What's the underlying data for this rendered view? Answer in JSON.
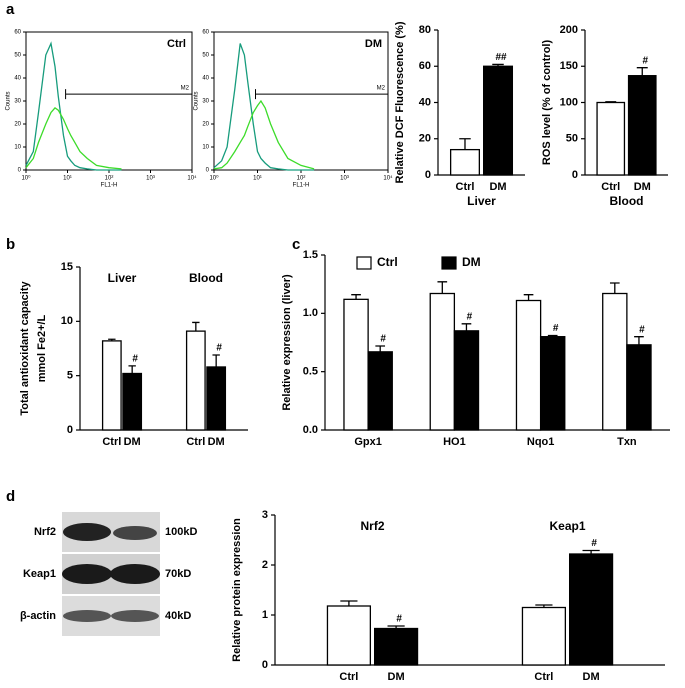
{
  "panels": [
    "a",
    "b",
    "c",
    "d"
  ],
  "blot": {
    "rows": [
      {
        "label": "Nrf2",
        "size": "100kD"
      },
      {
        "label": "Keap1",
        "size": "70kD"
      },
      {
        "label": "β-actin",
        "size": "40kD"
      }
    ]
  },
  "chart_data": [
    {
      "type": "line",
      "title": "Ctrl",
      "xlabel": "FL1-H",
      "ylabel": "Counts",
      "xscale": "log",
      "xlim": [
        1,
        10000
      ],
      "xticks": [
        {
          "value": 1,
          "label": "10⁰"
        },
        {
          "value": 10,
          "label": "10¹"
        },
        {
          "value": 100,
          "label": "10²"
        },
        {
          "value": 1000,
          "label": "10³"
        },
        {
          "value": 10000,
          "label": "10⁴"
        }
      ],
      "ylim": [
        0,
        60
      ],
      "yticks": [
        0,
        10,
        20,
        30,
        40,
        50,
        60
      ],
      "x": [
        1,
        1.5,
        2,
        3,
        4,
        5,
        6,
        8,
        10,
        12,
        15,
        20,
        30,
        50,
        100,
        200
      ],
      "series": [
        {
          "color": "#179c7d",
          "values": [
            2,
            8,
            25,
            50,
            55,
            45,
            32,
            15,
            6,
            4,
            2,
            1,
            0.5,
            0,
            0,
            0
          ]
        },
        {
          "color": "#3ddc2a",
          "values": [
            1,
            5,
            12,
            20,
            25,
            27,
            26,
            22,
            18,
            15,
            12,
            8,
            5,
            2,
            1,
            0.5
          ]
        }
      ],
      "gate": {
        "label": "M2",
        "x": [
          9,
          10000
        ],
        "y": 33
      }
    },
    {
      "type": "line",
      "title": "DM",
      "xlabel": "FL1-H",
      "ylabel": "Counts",
      "xscale": "log",
      "xlim": [
        1,
        10000
      ],
      "xticks": [
        {
          "value": 1,
          "label": "10⁰"
        },
        {
          "value": 10,
          "label": "10¹"
        },
        {
          "value": 100,
          "label": "10²"
        },
        {
          "value": 1000,
          "label": "10³"
        },
        {
          "value": 10000,
          "label": "10⁴"
        }
      ],
      "ylim": [
        0,
        60
      ],
      "yticks": [
        0,
        10,
        20,
        30,
        40,
        50,
        60
      ],
      "x": [
        1,
        1.5,
        2,
        3,
        4,
        5,
        6,
        8,
        10,
        12,
        15,
        20,
        30,
        50,
        100,
        200
      ],
      "series": [
        {
          "color": "#179c7d",
          "values": [
            1,
            4,
            10,
            35,
            55,
            50,
            38,
            20,
            8,
            5,
            3,
            1,
            0.5,
            0,
            0,
            0
          ]
        },
        {
          "color": "#3ddc2a",
          "values": [
            0.5,
            1,
            3,
            8,
            12,
            15,
            19,
            25,
            28,
            30,
            27,
            20,
            12,
            5,
            2,
            0.5
          ]
        }
      ],
      "gate": {
        "label": "M2",
        "x": [
          9,
          10000
        ],
        "y": 33
      }
    },
    {
      "type": "bar",
      "ylabel": "Relative DCF Fluorescence (%)",
      "xlabel": "Liver",
      "ylim": [
        0,
        80
      ],
      "yticks": [
        0,
        20,
        40,
        60,
        80
      ],
      "groups": [
        {
          "categories": [
            "Ctrl",
            "DM"
          ],
          "values": [
            14,
            60
          ],
          "errors": [
            6,
            1
          ],
          "colors": [
            "#ffffff",
            "#000000"
          ],
          "annotations": [
            null,
            "##"
          ]
        }
      ]
    },
    {
      "type": "bar",
      "ylabel": "ROS level (% of control)",
      "xlabel": "Blood",
      "ylim": [
        0,
        200
      ],
      "yticks": [
        0,
        50,
        100,
        150,
        200
      ],
      "groups": [
        {
          "categories": [
            "Ctrl",
            "DM"
          ],
          "values": [
            100,
            137
          ],
          "errors": [
            1,
            11
          ],
          "colors": [
            "#ffffff",
            "#000000"
          ],
          "annotations": [
            null,
            "#"
          ]
        }
      ]
    },
    {
      "type": "bar",
      "ylabel": [
        "Total antioxidant capacity",
        "mmol Fe2+/L"
      ],
      "ylim": [
        0,
        15
      ],
      "yticks": [
        0,
        5,
        10,
        15
      ],
      "groups": [
        {
          "name": "Liver",
          "categories": [
            "Ctrl",
            "DM"
          ],
          "values": [
            8.2,
            5.2
          ],
          "errors": [
            0.15,
            0.7
          ],
          "colors": [
            "#ffffff",
            "#000000"
          ],
          "annotations": [
            null,
            "#"
          ]
        },
        {
          "name": "Blood",
          "categories": [
            "Ctrl",
            "DM"
          ],
          "values": [
            9.1,
            5.8
          ],
          "errors": [
            0.8,
            1.1
          ],
          "colors": [
            "#ffffff",
            "#000000"
          ],
          "annotations": [
            null,
            "#"
          ]
        }
      ]
    },
    {
      "type": "bar",
      "ylabel": "Relative expression (liver)",
      "ylim": [
        0,
        1.5
      ],
      "yticks": [
        {
          "value": 0,
          "label": "0.0"
        },
        0.5,
        {
          "value": 1,
          "label": "1.0"
        },
        1.5
      ],
      "legend": "top",
      "categories": [
        "Gpx1",
        "HO1",
        "Nqo1",
        "Txn"
      ],
      "series": [
        {
          "name": "Ctrl",
          "color": "#ffffff",
          "values": [
            1.12,
            1.17,
            1.11,
            1.17
          ],
          "errors": [
            0.04,
            0.1,
            0.05,
            0.09
          ],
          "annotations": [
            null,
            null,
            null,
            null
          ]
        },
        {
          "name": "DM",
          "color": "#000000",
          "values": [
            0.67,
            0.85,
            0.8,
            0.73
          ],
          "errors": [
            0.05,
            0.06,
            0.01,
            0.07
          ],
          "annotations": [
            "#",
            "#",
            "#",
            "#"
          ]
        }
      ]
    },
    {
      "type": "bar",
      "ylabel": "Relative protein expression",
      "ylim": [
        0,
        3
      ],
      "yticks": [
        0,
        1,
        2,
        3
      ],
      "groups": [
        {
          "name": "Nrf2",
          "categories": [
            "Ctrl",
            "DM"
          ],
          "values": [
            1.18,
            0.73
          ],
          "errors": [
            0.1,
            0.05
          ],
          "colors": [
            "#ffffff",
            "#000000"
          ],
          "annotations": [
            null,
            "#"
          ]
        },
        {
          "name": "Keap1",
          "categories": [
            "Ctrl",
            "DM"
          ],
          "values": [
            1.15,
            2.22
          ],
          "errors": [
            0.05,
            0.07
          ],
          "colors": [
            "#ffffff",
            "#000000"
          ],
          "annotations": [
            null,
            "#"
          ]
        }
      ]
    }
  ]
}
